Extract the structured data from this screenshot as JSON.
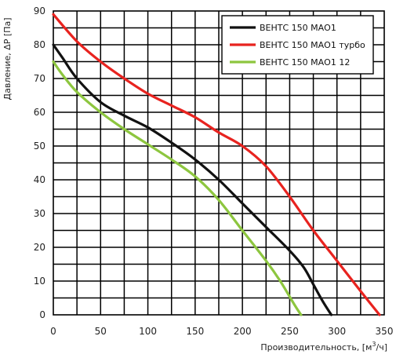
{
  "chart_data": {
    "type": "line",
    "xlabel": "Производительность, [м",
    "xlabel_sup": "3",
    "xlabel_suffix": "/ч]",
    "ylabel": "Давление, ΔP [Па]",
    "xlim": [
      0,
      350
    ],
    "ylim": [
      0,
      90
    ],
    "x_ticks": [
      0,
      50,
      100,
      150,
      200,
      250,
      300,
      350
    ],
    "y_ticks": [
      0,
      10,
      20,
      30,
      40,
      50,
      60,
      70,
      80,
      90
    ],
    "x_grid_step": 25,
    "y_grid_step": 5,
    "grid": true,
    "legend_position": "top-right",
    "series": [
      {
        "name": "ВЕНТС 150 МАО1",
        "color": "#111111",
        "points": [
          [
            0,
            80
          ],
          [
            10,
            76
          ],
          [
            25,
            70
          ],
          [
            50,
            63
          ],
          [
            75,
            59
          ],
          [
            100,
            55.5
          ],
          [
            125,
            51
          ],
          [
            150,
            46
          ],
          [
            175,
            40
          ],
          [
            200,
            33
          ],
          [
            225,
            26
          ],
          [
            250,
            19
          ],
          [
            265,
            14
          ],
          [
            275,
            9
          ],
          [
            285,
            4
          ],
          [
            294,
            0
          ]
        ]
      },
      {
        "name": "ВЕНТС 150 МАО1 турбо",
        "color": "#e8231f",
        "points": [
          [
            0,
            89
          ],
          [
            25,
            81
          ],
          [
            50,
            75
          ],
          [
            75,
            70
          ],
          [
            100,
            65.5
          ],
          [
            125,
            62
          ],
          [
            150,
            58.5
          ],
          [
            175,
            54
          ],
          [
            200,
            50
          ],
          [
            225,
            44
          ],
          [
            250,
            35
          ],
          [
            275,
            25
          ],
          [
            300,
            16
          ],
          [
            325,
            7
          ],
          [
            345,
            0
          ]
        ]
      },
      {
        "name": "ВЕНТС 150 МАО1 12",
        "color": "#8dc63f",
        "points": [
          [
            0,
            75
          ],
          [
            10,
            71
          ],
          [
            25,
            66
          ],
          [
            50,
            60
          ],
          [
            75,
            55
          ],
          [
            100,
            50.5
          ],
          [
            125,
            46
          ],
          [
            150,
            41
          ],
          [
            175,
            34
          ],
          [
            200,
            25
          ],
          [
            225,
            16
          ],
          [
            240,
            10
          ],
          [
            255,
            3
          ],
          [
            262,
            0
          ]
        ]
      }
    ]
  }
}
